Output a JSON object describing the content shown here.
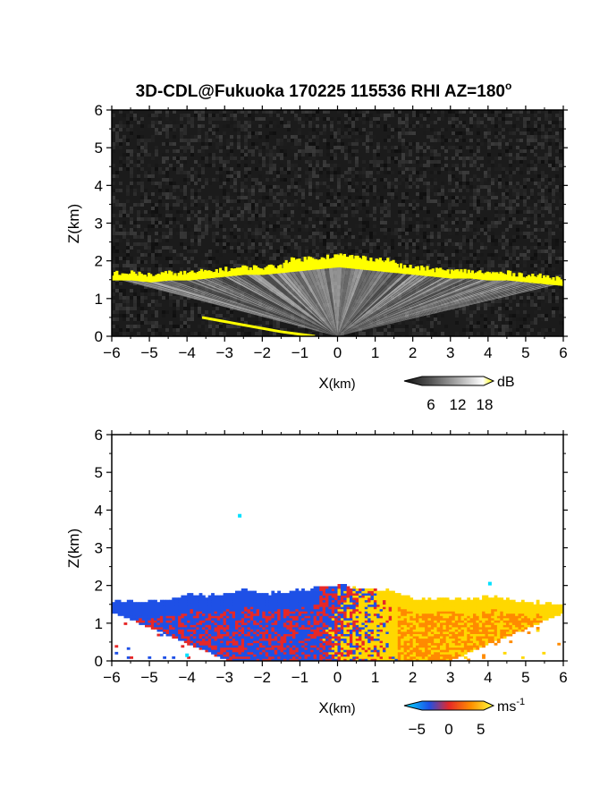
{
  "title": "3D-CDL@Fukuoka 170225 115536 RHI AZ=180",
  "title_sup": "o",
  "chart_data": [
    {
      "type": "heatmap",
      "panel": "backscatter",
      "xlabel_main": "X",
      "xlabel_unit": "(km)",
      "ylabel": "Z(km)",
      "xlim": [
        -6,
        6
      ],
      "ylim": [
        0,
        6
      ],
      "xticks": [
        -6,
        -5,
        -4,
        -3,
        -2,
        -1,
        0,
        1,
        2,
        3,
        4,
        5,
        6
      ],
      "yticks": [
        0,
        1,
        2,
        3,
        4,
        5,
        6
      ],
      "colorbar": {
        "unit": "dB",
        "ticks": [
          6,
          12,
          18
        ],
        "range": [
          0,
          20
        ]
      },
      "colors": {
        "background": "#1b1b1b",
        "highlight": "#ffff00"
      },
      "cloud_base_profile": {
        "x": [
          -6,
          -5.5,
          -5,
          -4.5,
          -4,
          -3.5,
          -3,
          -2.5,
          -2,
          -1.5,
          -1,
          -0.5,
          0,
          0.5,
          1,
          1.5,
          2,
          2.5,
          3,
          3.5,
          4,
          4.5,
          5,
          5.5,
          6
        ],
        "z": [
          1.55,
          1.55,
          1.5,
          1.55,
          1.55,
          1.6,
          1.65,
          1.7,
          1.7,
          1.75,
          1.8,
          1.85,
          1.9,
          1.85,
          1.8,
          1.75,
          1.7,
          1.65,
          1.6,
          1.6,
          1.55,
          1.55,
          1.5,
          1.45,
          1.4
        ]
      }
    },
    {
      "type": "heatmap",
      "panel": "doppler_velocity",
      "xlabel_main": "X",
      "xlabel_unit": "(km)",
      "ylabel": "Z(km)",
      "xlim": [
        -6,
        6
      ],
      "ylim": [
        0,
        6
      ],
      "xticks": [
        -6,
        -5,
        -4,
        -3,
        -2,
        -1,
        0,
        1,
        2,
        3,
        4,
        5,
        6
      ],
      "yticks": [
        0,
        1,
        2,
        3,
        4,
        5,
        6
      ],
      "colorbar": {
        "unit": "ms",
        "unit_exp": "-1",
        "ticks": [
          "−5",
          "0",
          "5"
        ],
        "range": [
          -7,
          7
        ]
      },
      "colors": {
        "negative": "#1e50e6",
        "zero": "#e62828",
        "positive": "#ffd800",
        "strong_negative": "#00e0ff"
      },
      "echo_top_profile": {
        "x": [
          -6,
          -5.5,
          -5,
          -4.5,
          -4,
          -3.5,
          -3,
          -2.5,
          -2,
          -1.5,
          -1,
          -0.5,
          0,
          0.5,
          1,
          1.5,
          2,
          2.5,
          3,
          3.5,
          4,
          4.5,
          5,
          5.5,
          6
        ],
        "z": [
          1.55,
          1.55,
          1.55,
          1.6,
          1.75,
          1.7,
          1.75,
          1.85,
          1.75,
          1.8,
          1.85,
          1.9,
          2.0,
          1.9,
          1.85,
          1.8,
          1.6,
          1.6,
          1.65,
          1.6,
          1.7,
          1.6,
          1.55,
          1.5,
          1.45
        ]
      },
      "isolated_points": [
        {
          "x": -2.6,
          "z": 3.85,
          "v": -7
        },
        {
          "x": 4.05,
          "z": 2.05,
          "v": -7
        },
        {
          "x": -4.0,
          "z": 0.15,
          "v": -7
        }
      ]
    }
  ]
}
